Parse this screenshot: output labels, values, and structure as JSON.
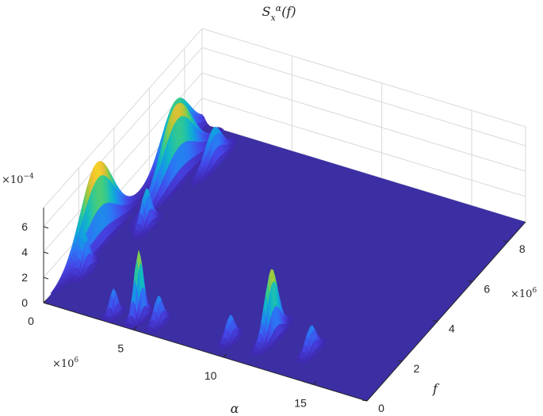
{
  "chart_data": {
    "type": "surface",
    "title": "S_x^α(f)",
    "xlabel": "α",
    "ylabel": "f",
    "zlabel": "",
    "x_exponent": "×10^6",
    "y_exponent": "×10^6",
    "z_exponent": "×10^-4",
    "xlim": [
      0,
      18
    ],
    "ylim": [
      0,
      9
    ],
    "zlim": [
      0,
      7.5
    ],
    "x_ticks": [
      "0",
      "5",
      "10",
      "15"
    ],
    "y_ticks": [
      "0",
      "2",
      "4",
      "6",
      "8"
    ],
    "z_ticks": [
      "0",
      "2",
      "4",
      "6"
    ],
    "grid": true,
    "colormap": "parula",
    "colors": {
      "floor": "#3b2fa3",
      "low": "#3e26a8",
      "mid": "#1fb8c6",
      "high": "#f9fb0e"
    },
    "peaks": [
      {
        "alpha": 0.0,
        "f": 3.0,
        "sigma_f": 0.9,
        "amplitude": 6.3
      },
      {
        "alpha": 0.0,
        "f": 7.5,
        "sigma_f": 0.8,
        "amplitude": 4.2
      },
      {
        "alpha": 0.5,
        "f": 1.8,
        "sigma_f": 0.25,
        "amplitude": 2.8
      },
      {
        "alpha": 1.0,
        "f": 6.5,
        "sigma_f": 0.9,
        "amplitude": 5.8
      },
      {
        "alpha": 1.5,
        "f": 4.3,
        "sigma_f": 0.25,
        "amplitude": 2.9
      },
      {
        "alpha": 2.0,
        "f": 7.6,
        "sigma_f": 0.45,
        "amplitude": 2.7
      },
      {
        "alpha": 3.5,
        "f": 0.4,
        "sigma_f": 0.15,
        "amplitude": 2.0
      },
      {
        "alpha": 4.7,
        "f": 0.6,
        "sigma_f": 0.2,
        "amplitude": 5.2
      },
      {
        "alpha": 5.8,
        "f": 0.6,
        "sigma_f": 0.2,
        "amplitude": 2.1
      },
      {
        "alpha": 9.6,
        "f": 0.8,
        "sigma_f": 0.2,
        "amplitude": 1.9
      },
      {
        "alpha": 11.3,
        "f": 1.4,
        "sigma_f": 0.35,
        "amplitude": 5.3
      },
      {
        "alpha": 13.6,
        "f": 1.3,
        "sigma_f": 0.25,
        "amplitude": 2.0
      }
    ]
  }
}
